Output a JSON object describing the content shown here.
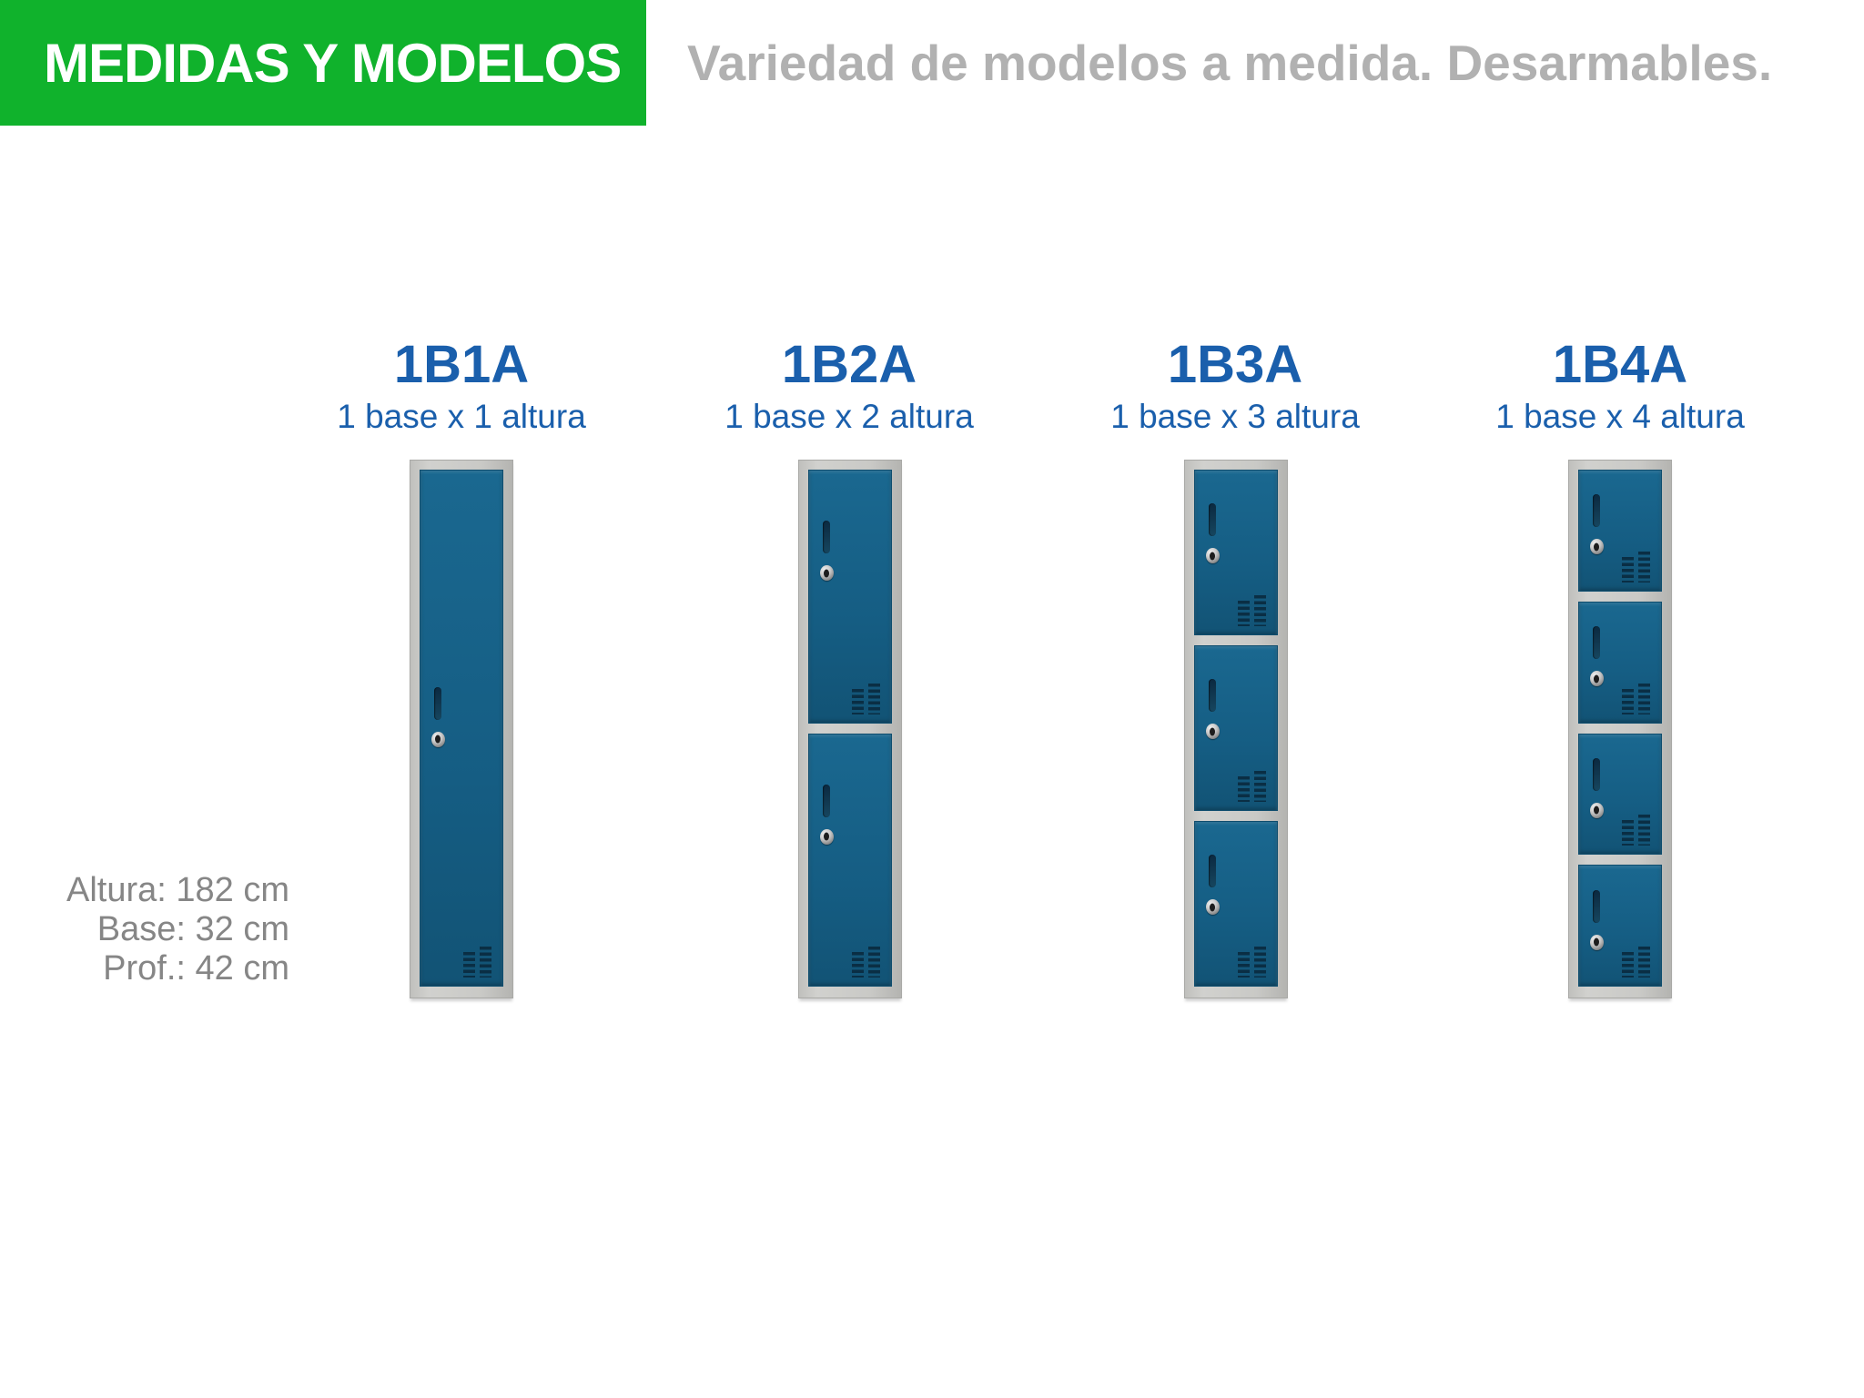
{
  "header": {
    "title": "MEDIDAS Y MODELOS",
    "subtitle": "Variedad de modelos a medida. Desarmables.",
    "banner_color": "#10b22c",
    "subtitle_color": "#b1b1b1"
  },
  "dimensions": {
    "lines": [
      "Altura: 182 cm",
      "Base: 32 cm",
      "Prof.: 42 cm"
    ]
  },
  "models": [
    {
      "code": "1B1A",
      "description": "1 base x 1 altura",
      "doors": 1
    },
    {
      "code": "1B2A",
      "description": "1 base x 2 altura",
      "doors": 2
    },
    {
      "code": "1B3A",
      "description": "1 base x 3 altura",
      "doors": 3
    },
    {
      "code": "1B4A",
      "description": "1 base x 4 altura",
      "doors": 4
    }
  ],
  "colors": {
    "model_label": "#1a5fac",
    "door_blue": "#155d83",
    "frame_gray": "#c9c9c6",
    "vent_dark": "#0a2e44"
  }
}
